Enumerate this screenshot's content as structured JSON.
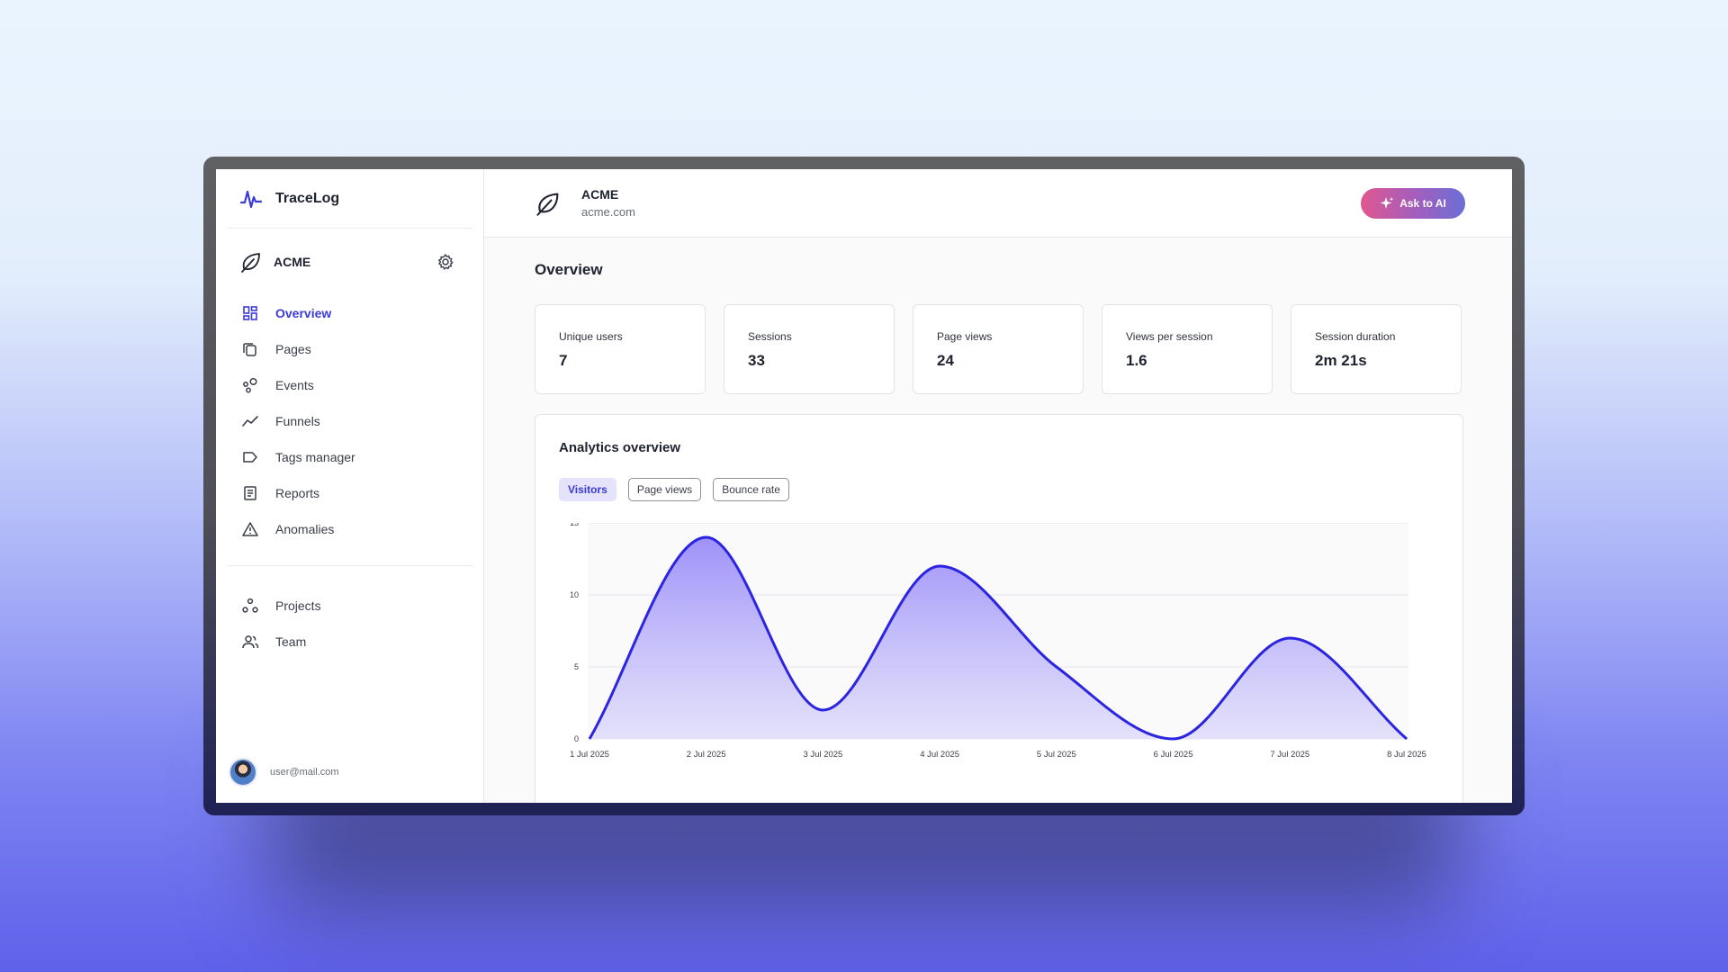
{
  "sidebar": {
    "brand": "TraceLog",
    "project": "ACME",
    "nav": [
      {
        "label": "Overview",
        "icon": "grid-icon",
        "active": true
      },
      {
        "label": "Pages",
        "icon": "pages-icon"
      },
      {
        "label": "Events",
        "icon": "events-icon"
      },
      {
        "label": "Funnels",
        "icon": "trend-icon"
      },
      {
        "label": "Tags manager",
        "icon": "tag-icon"
      },
      {
        "label": "Reports",
        "icon": "report-icon"
      },
      {
        "label": "Anomalies",
        "icon": "warning-icon"
      }
    ],
    "nav2": [
      {
        "label": "Projects",
        "icon": "projects-icon"
      },
      {
        "label": "Team",
        "icon": "team-icon"
      }
    ],
    "user_email": "user@mail.com"
  },
  "header": {
    "project_name": "ACME",
    "project_domain": "acme.com",
    "ask_ai_label": "Ask to AI"
  },
  "page_title": "Overview",
  "metrics": [
    {
      "label": "Unique users",
      "value": "7"
    },
    {
      "label": "Sessions",
      "value": "33"
    },
    {
      "label": "Page views",
      "value": "24"
    },
    {
      "label": "Views per session",
      "value": "1.6"
    },
    {
      "label": "Session duration",
      "value": "2m 21s"
    }
  ],
  "analytics": {
    "title": "Analytics overview",
    "tabs": [
      "Visitors",
      "Page views",
      "Bounce rate"
    ],
    "active_tab": "Visitors"
  },
  "colors": {
    "accent": "#3a3ad8",
    "line": "#2b24e0",
    "fill_top": "#9a8cf8"
  },
  "chart_data": {
    "type": "area",
    "categories": [
      "1 Jul 2025",
      "2 Jul 2025",
      "3 Jul 2025",
      "4 Jul 2025",
      "5 Jul 2025",
      "6 Jul 2025",
      "7 Jul 2025",
      "8 Jul 2025"
    ],
    "series": [
      {
        "values": [
          0,
          14,
          2,
          12,
          5,
          0,
          7,
          0
        ]
      }
    ],
    "yticks": [
      0,
      5,
      10,
      15
    ],
    "ylim": [
      0,
      15
    ],
    "grid": true
  }
}
